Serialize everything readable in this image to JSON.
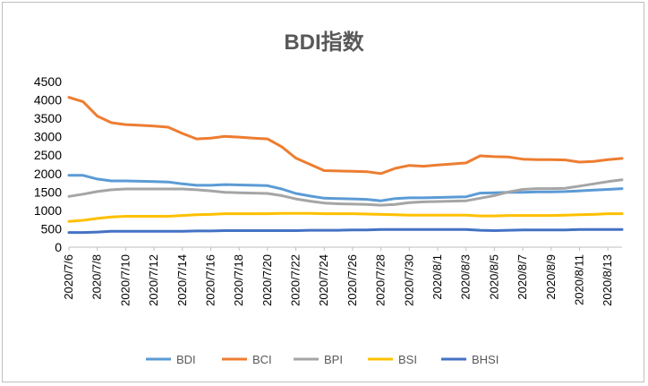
{
  "chart_data": {
    "type": "line",
    "title": "BDI指数",
    "xlabel": "",
    "ylabel": "",
    "ylim": [
      0,
      4500
    ],
    "yticks": [
      0,
      500,
      1000,
      1500,
      2000,
      2500,
      3000,
      3500,
      4000,
      4500
    ],
    "grid": false,
    "legend": "bottom",
    "x": [
      "2020/7/6",
      "2020/7/7",
      "2020/7/8",
      "2020/7/9",
      "2020/7/10",
      "2020/7/11",
      "2020/7/12",
      "2020/7/13",
      "2020/7/14",
      "2020/7/15",
      "2020/7/16",
      "2020/7/17",
      "2020/7/18",
      "2020/7/19",
      "2020/7/20",
      "2020/7/21",
      "2020/7/22",
      "2020/7/23",
      "2020/7/24",
      "2020/7/25",
      "2020/7/26",
      "2020/7/27",
      "2020/7/28",
      "2020/7/29",
      "2020/7/30",
      "2020/7/31",
      "2020/8/1",
      "2020/8/2",
      "2020/8/3",
      "2020/8/4",
      "2020/8/5",
      "2020/8/6",
      "2020/8/7",
      "2020/8/8",
      "2020/8/9",
      "2020/8/10",
      "2020/8/11",
      "2020/8/12",
      "2020/8/13",
      "2020/8/14"
    ],
    "xtick_labels": [
      "2020/7/6",
      "2020/7/8",
      "2020/7/10",
      "2020/7/12",
      "2020/7/14",
      "2020/7/16",
      "2020/7/18",
      "2020/7/20",
      "2020/7/22",
      "2020/7/24",
      "2020/7/26",
      "2020/7/28",
      "2020/7/30",
      "2020/8/1",
      "2020/8/3",
      "2020/8/5",
      "2020/8/7",
      "2020/8/9",
      "2020/8/11",
      "2020/8/13"
    ],
    "series": [
      {
        "name": "BDI",
        "color": "#5B9BD5",
        "values": [
          1950,
          1950,
          1850,
          1800,
          1800,
          1790,
          1780,
          1770,
          1720,
          1680,
          1680,
          1700,
          1690,
          1680,
          1670,
          1580,
          1460,
          1390,
          1330,
          1320,
          1310,
          1300,
          1260,
          1320,
          1340,
          1340,
          1350,
          1360,
          1370,
          1470,
          1480,
          1490,
          1490,
          1500,
          1500,
          1510,
          1530,
          1550,
          1570,
          1590
        ]
      },
      {
        "name": "BCI",
        "color": "#ED7D31",
        "values": [
          4070,
          3950,
          3560,
          3380,
          3330,
          3310,
          3290,
          3260,
          3090,
          2940,
          2960,
          3010,
          2990,
          2960,
          2940,
          2730,
          2420,
          2250,
          2080,
          2070,
          2060,
          2050,
          2000,
          2140,
          2220,
          2200,
          2230,
          2260,
          2290,
          2480,
          2460,
          2450,
          2390,
          2380,
          2380,
          2370,
          2310,
          2330,
          2380,
          2410
        ]
      },
      {
        "name": "BPI",
        "color": "#A5A5A5",
        "values": [
          1380,
          1440,
          1510,
          1560,
          1580,
          1580,
          1580,
          1580,
          1580,
          1560,
          1530,
          1490,
          1480,
          1470,
          1460,
          1400,
          1310,
          1250,
          1200,
          1180,
          1170,
          1160,
          1140,
          1160,
          1210,
          1230,
          1240,
          1250,
          1260,
          1330,
          1400,
          1500,
          1570,
          1590,
          1590,
          1600,
          1660,
          1720,
          1780,
          1830
        ]
      },
      {
        "name": "BSI",
        "color": "#FFC000",
        "values": [
          700,
          730,
          780,
          820,
          840,
          840,
          840,
          840,
          860,
          880,
          890,
          910,
          910,
          910,
          910,
          920,
          920,
          920,
          910,
          910,
          910,
          900,
          890,
          880,
          870,
          870,
          870,
          870,
          870,
          850,
          850,
          860,
          860,
          860,
          860,
          870,
          880,
          890,
          910,
          910
        ]
      },
      {
        "name": "BHSI",
        "color": "#4472C4",
        "values": [
          400,
          400,
          410,
          430,
          430,
          430,
          430,
          430,
          430,
          440,
          440,
          450,
          450,
          450,
          450,
          450,
          450,
          460,
          460,
          460,
          470,
          470,
          480,
          480,
          480,
          480,
          480,
          480,
          480,
          460,
          450,
          460,
          470,
          470,
          470,
          470,
          480,
          480,
          480,
          480
        ]
      }
    ]
  }
}
